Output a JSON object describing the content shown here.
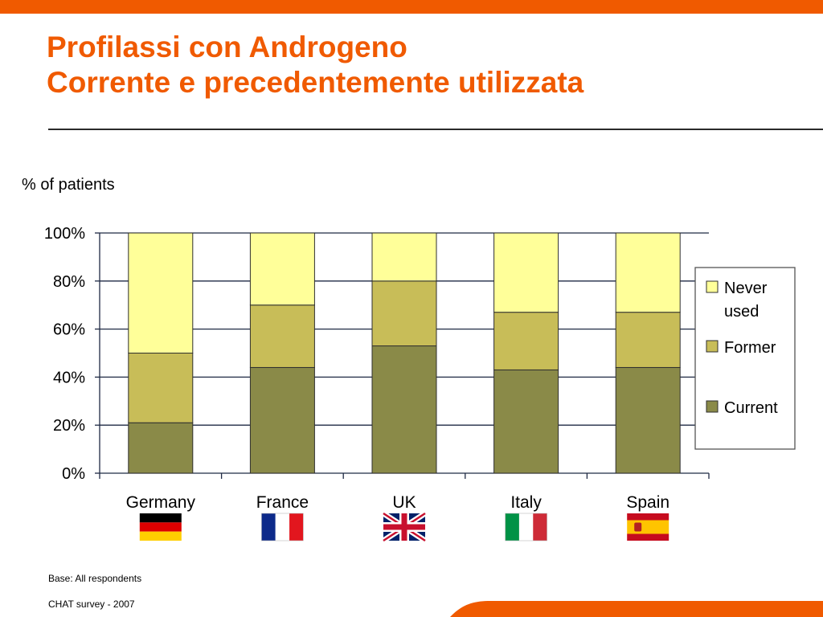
{
  "slide": {
    "title_line1": "Profilassi con Androgeno",
    "title_line2": "Corrente e precedentemente utilizzata",
    "base_note": "Base: All respondents",
    "source_note": "CHAT survey  -  2007",
    "accent_color": "#f05a00"
  },
  "chart_data": {
    "type": "bar",
    "stacked": true,
    "ylabel": "% of patients",
    "ylim": [
      0,
      100
    ],
    "yticks": [
      "0%",
      "20%",
      "40%",
      "60%",
      "80%",
      "100%"
    ],
    "categories": [
      "Germany",
      "France",
      "UK",
      "Italy",
      "Spain"
    ],
    "flags": [
      "flag-germany-icon",
      "flag-france-icon",
      "flag-uk-icon",
      "flag-italy-icon",
      "flag-spain-icon"
    ],
    "series": [
      {
        "name": "Current",
        "color": "#8a8a48",
        "values": [
          21,
          44,
          53,
          43,
          44
        ]
      },
      {
        "name": "Former",
        "color": "#c8bd58",
        "values": [
          29,
          26,
          27,
          24,
          23
        ]
      },
      {
        "name": "Never used",
        "color": "#ffff99",
        "values": [
          50,
          30,
          20,
          33,
          33
        ]
      }
    ],
    "legend_order": [
      "Never used",
      "Former",
      "Current"
    ],
    "legend_position": "right",
    "grid": true
  }
}
